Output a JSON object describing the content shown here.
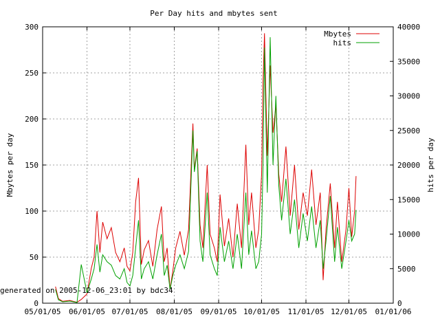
{
  "chart_data": {
    "type": "line",
    "title": "Per Day hits and mbytes sent",
    "ylabel": "Mbytes per day",
    "y2label": "hits per day",
    "footer": "generated on 2005-12-06_23:01 by bdc34",
    "xlim": [
      "2005-05-01",
      "2006-01-01"
    ],
    "ylim": [
      0,
      300
    ],
    "y2lim": [
      0,
      40000
    ],
    "x_tick_labels": [
      "05/01/05",
      "06/01/05",
      "07/01/05",
      "08/01/05",
      "09/01/05",
      "10/01/05",
      "11/01/05",
      "12/01/05",
      "01/01/06"
    ],
    "y_tick_labels": [
      "0",
      "50",
      "100",
      "150",
      "200",
      "250",
      "300"
    ],
    "y2_tick_labels": [
      "0",
      "5000",
      "10000",
      "15000",
      "20000",
      "25000",
      "30000",
      "35000",
      "40000"
    ],
    "grid": true,
    "legend_position": "top-right",
    "series": [
      {
        "name": "Mbytes",
        "axis": "left",
        "color": "#dd0000",
        "points": [
          [
            "2005-05-10",
            18
          ],
          [
            "2005-05-12",
            5
          ],
          [
            "2005-05-15",
            2
          ],
          [
            "2005-05-20",
            3
          ],
          [
            "2005-05-25",
            1
          ],
          [
            "2005-05-28",
            4
          ],
          [
            "2005-06-01",
            10
          ],
          [
            "2005-06-04",
            38
          ],
          [
            "2005-06-06",
            50
          ],
          [
            "2005-06-08",
            100
          ],
          [
            "2005-06-10",
            55
          ],
          [
            "2005-06-12",
            88
          ],
          [
            "2005-06-15",
            70
          ],
          [
            "2005-06-18",
            82
          ],
          [
            "2005-06-21",
            55
          ],
          [
            "2005-06-24",
            45
          ],
          [
            "2005-06-27",
            60
          ],
          [
            "2005-06-29",
            40
          ],
          [
            "2005-07-01",
            35
          ],
          [
            "2005-07-03",
            55
          ],
          [
            "2005-07-05",
            110
          ],
          [
            "2005-07-07",
            136
          ],
          [
            "2005-07-09",
            42
          ],
          [
            "2005-07-11",
            58
          ],
          [
            "2005-07-14",
            68
          ],
          [
            "2005-07-17",
            40
          ],
          [
            "2005-07-20",
            80
          ],
          [
            "2005-07-23",
            105
          ],
          [
            "2005-07-25",
            45
          ],
          [
            "2005-07-27",
            60
          ],
          [
            "2005-07-29",
            15
          ],
          [
            "2005-07-31",
            35
          ],
          [
            "2005-08-02",
            60
          ],
          [
            "2005-08-05",
            78
          ],
          [
            "2005-08-08",
            52
          ],
          [
            "2005-08-11",
            80
          ],
          [
            "2005-08-14",
            195
          ],
          [
            "2005-08-15",
            145
          ],
          [
            "2005-08-17",
            168
          ],
          [
            "2005-08-19",
            85
          ],
          [
            "2005-08-21",
            60
          ],
          [
            "2005-08-24",
            150
          ],
          [
            "2005-08-26",
            75
          ],
          [
            "2005-08-29",
            60
          ],
          [
            "2005-08-31",
            45
          ],
          [
            "2005-09-02",
            118
          ],
          [
            "2005-09-05",
            62
          ],
          [
            "2005-09-08",
            92
          ],
          [
            "2005-09-11",
            50
          ],
          [
            "2005-09-14",
            108
          ],
          [
            "2005-09-17",
            60
          ],
          [
            "2005-09-20",
            172
          ],
          [
            "2005-09-22",
            85
          ],
          [
            "2005-09-24",
            120
          ],
          [
            "2005-09-27",
            60
          ],
          [
            "2005-09-29",
            80
          ],
          [
            "2005-10-01",
            140
          ],
          [
            "2005-10-02",
            240
          ],
          [
            "2005-10-03",
            293
          ],
          [
            "2005-10-05",
            160
          ],
          [
            "2005-10-07",
            258
          ],
          [
            "2005-10-09",
            185
          ],
          [
            "2005-10-11",
            215
          ],
          [
            "2005-10-13",
            140
          ],
          [
            "2005-10-15",
            110
          ],
          [
            "2005-10-18",
            170
          ],
          [
            "2005-10-21",
            95
          ],
          [
            "2005-10-24",
            150
          ],
          [
            "2005-10-27",
            80
          ],
          [
            "2005-10-30",
            120
          ],
          [
            "2005-11-02",
            95
          ],
          [
            "2005-11-05",
            145
          ],
          [
            "2005-11-08",
            85
          ],
          [
            "2005-11-11",
            120
          ],
          [
            "2005-11-13",
            25
          ],
          [
            "2005-11-15",
            80
          ],
          [
            "2005-11-18",
            130
          ],
          [
            "2005-11-21",
            60
          ],
          [
            "2005-11-23",
            110
          ],
          [
            "2005-11-26",
            45
          ],
          [
            "2005-11-29",
            80
          ],
          [
            "2005-12-01",
            125
          ],
          [
            "2005-12-03",
            72
          ],
          [
            "2005-12-05",
            100
          ],
          [
            "2005-12-06",
            138
          ]
        ]
      },
      {
        "name": "hits",
        "axis": "right",
        "color": "#00a000",
        "points": [
          [
            "2005-05-10",
            2000
          ],
          [
            "2005-05-12",
            500
          ],
          [
            "2005-05-15",
            200
          ],
          [
            "2005-05-20",
            300
          ],
          [
            "2005-05-25",
            100
          ],
          [
            "2005-05-28",
            5600
          ],
          [
            "2005-06-01",
            1500
          ],
          [
            "2005-06-04",
            3500
          ],
          [
            "2005-06-06",
            5000
          ],
          [
            "2005-06-08",
            8500
          ],
          [
            "2005-06-10",
            4500
          ],
          [
            "2005-06-12",
            7000
          ],
          [
            "2005-06-15",
            6000
          ],
          [
            "2005-06-18",
            5500
          ],
          [
            "2005-06-21",
            4000
          ],
          [
            "2005-06-24",
            3500
          ],
          [
            "2005-06-27",
            5000
          ],
          [
            "2005-06-29",
            3000
          ],
          [
            "2005-07-01",
            2500
          ],
          [
            "2005-07-03",
            4000
          ],
          [
            "2005-07-05",
            8000
          ],
          [
            "2005-07-07",
            12000
          ],
          [
            "2005-07-09",
            3500
          ],
          [
            "2005-07-11",
            5000
          ],
          [
            "2005-07-14",
            6000
          ],
          [
            "2005-07-17",
            3500
          ],
          [
            "2005-07-20",
            7000
          ],
          [
            "2005-07-23",
            10000
          ],
          [
            "2005-07-25",
            4000
          ],
          [
            "2005-07-27",
            5500
          ],
          [
            "2005-07-29",
            2000
          ],
          [
            "2005-07-31",
            4000
          ],
          [
            "2005-08-02",
            5500
          ],
          [
            "2005-08-05",
            7000
          ],
          [
            "2005-08-08",
            5000
          ],
          [
            "2005-08-11",
            7500
          ],
          [
            "2005-08-14",
            25000
          ],
          [
            "2005-08-15",
            19000
          ],
          [
            "2005-08-17",
            22000
          ],
          [
            "2005-08-19",
            9000
          ],
          [
            "2005-08-21",
            6000
          ],
          [
            "2005-08-24",
            16000
          ],
          [
            "2005-08-26",
            7000
          ],
          [
            "2005-08-29",
            5000
          ],
          [
            "2005-08-31",
            4000
          ],
          [
            "2005-09-02",
            11000
          ],
          [
            "2005-09-05",
            6000
          ],
          [
            "2005-09-08",
            9000
          ],
          [
            "2005-09-11",
            5000
          ],
          [
            "2005-09-14",
            10000
          ],
          [
            "2005-09-17",
            5000
          ],
          [
            "2005-09-20",
            16000
          ],
          [
            "2005-09-22",
            7000
          ],
          [
            "2005-09-24",
            10500
          ],
          [
            "2005-09-27",
            5000
          ],
          [
            "2005-09-29",
            6000
          ],
          [
            "2005-10-01",
            10000
          ],
          [
            "2005-10-02",
            20000
          ],
          [
            "2005-10-03",
            37000
          ],
          [
            "2005-10-05",
            16000
          ],
          [
            "2005-10-07",
            38500
          ],
          [
            "2005-10-09",
            20000
          ],
          [
            "2005-10-11",
            30000
          ],
          [
            "2005-10-13",
            17000
          ],
          [
            "2005-10-15",
            12000
          ],
          [
            "2005-10-18",
            18000
          ],
          [
            "2005-10-21",
            10000
          ],
          [
            "2005-10-24",
            15000
          ],
          [
            "2005-10-27",
            8000
          ],
          [
            "2005-10-30",
            13000
          ],
          [
            "2005-11-02",
            9000
          ],
          [
            "2005-11-05",
            14000
          ],
          [
            "2005-11-08",
            8000
          ],
          [
            "2005-11-11",
            12000
          ],
          [
            "2005-11-13",
            5000
          ],
          [
            "2005-11-15",
            9000
          ],
          [
            "2005-11-18",
            15500
          ],
          [
            "2005-11-21",
            6000
          ],
          [
            "2005-11-23",
            11000
          ],
          [
            "2005-11-26",
            5000
          ],
          [
            "2005-11-29",
            9000
          ],
          [
            "2005-12-01",
            12000
          ],
          [
            "2005-12-03",
            9000
          ],
          [
            "2005-12-05",
            10000
          ],
          [
            "2005-12-06",
            13500
          ]
        ]
      }
    ]
  }
}
